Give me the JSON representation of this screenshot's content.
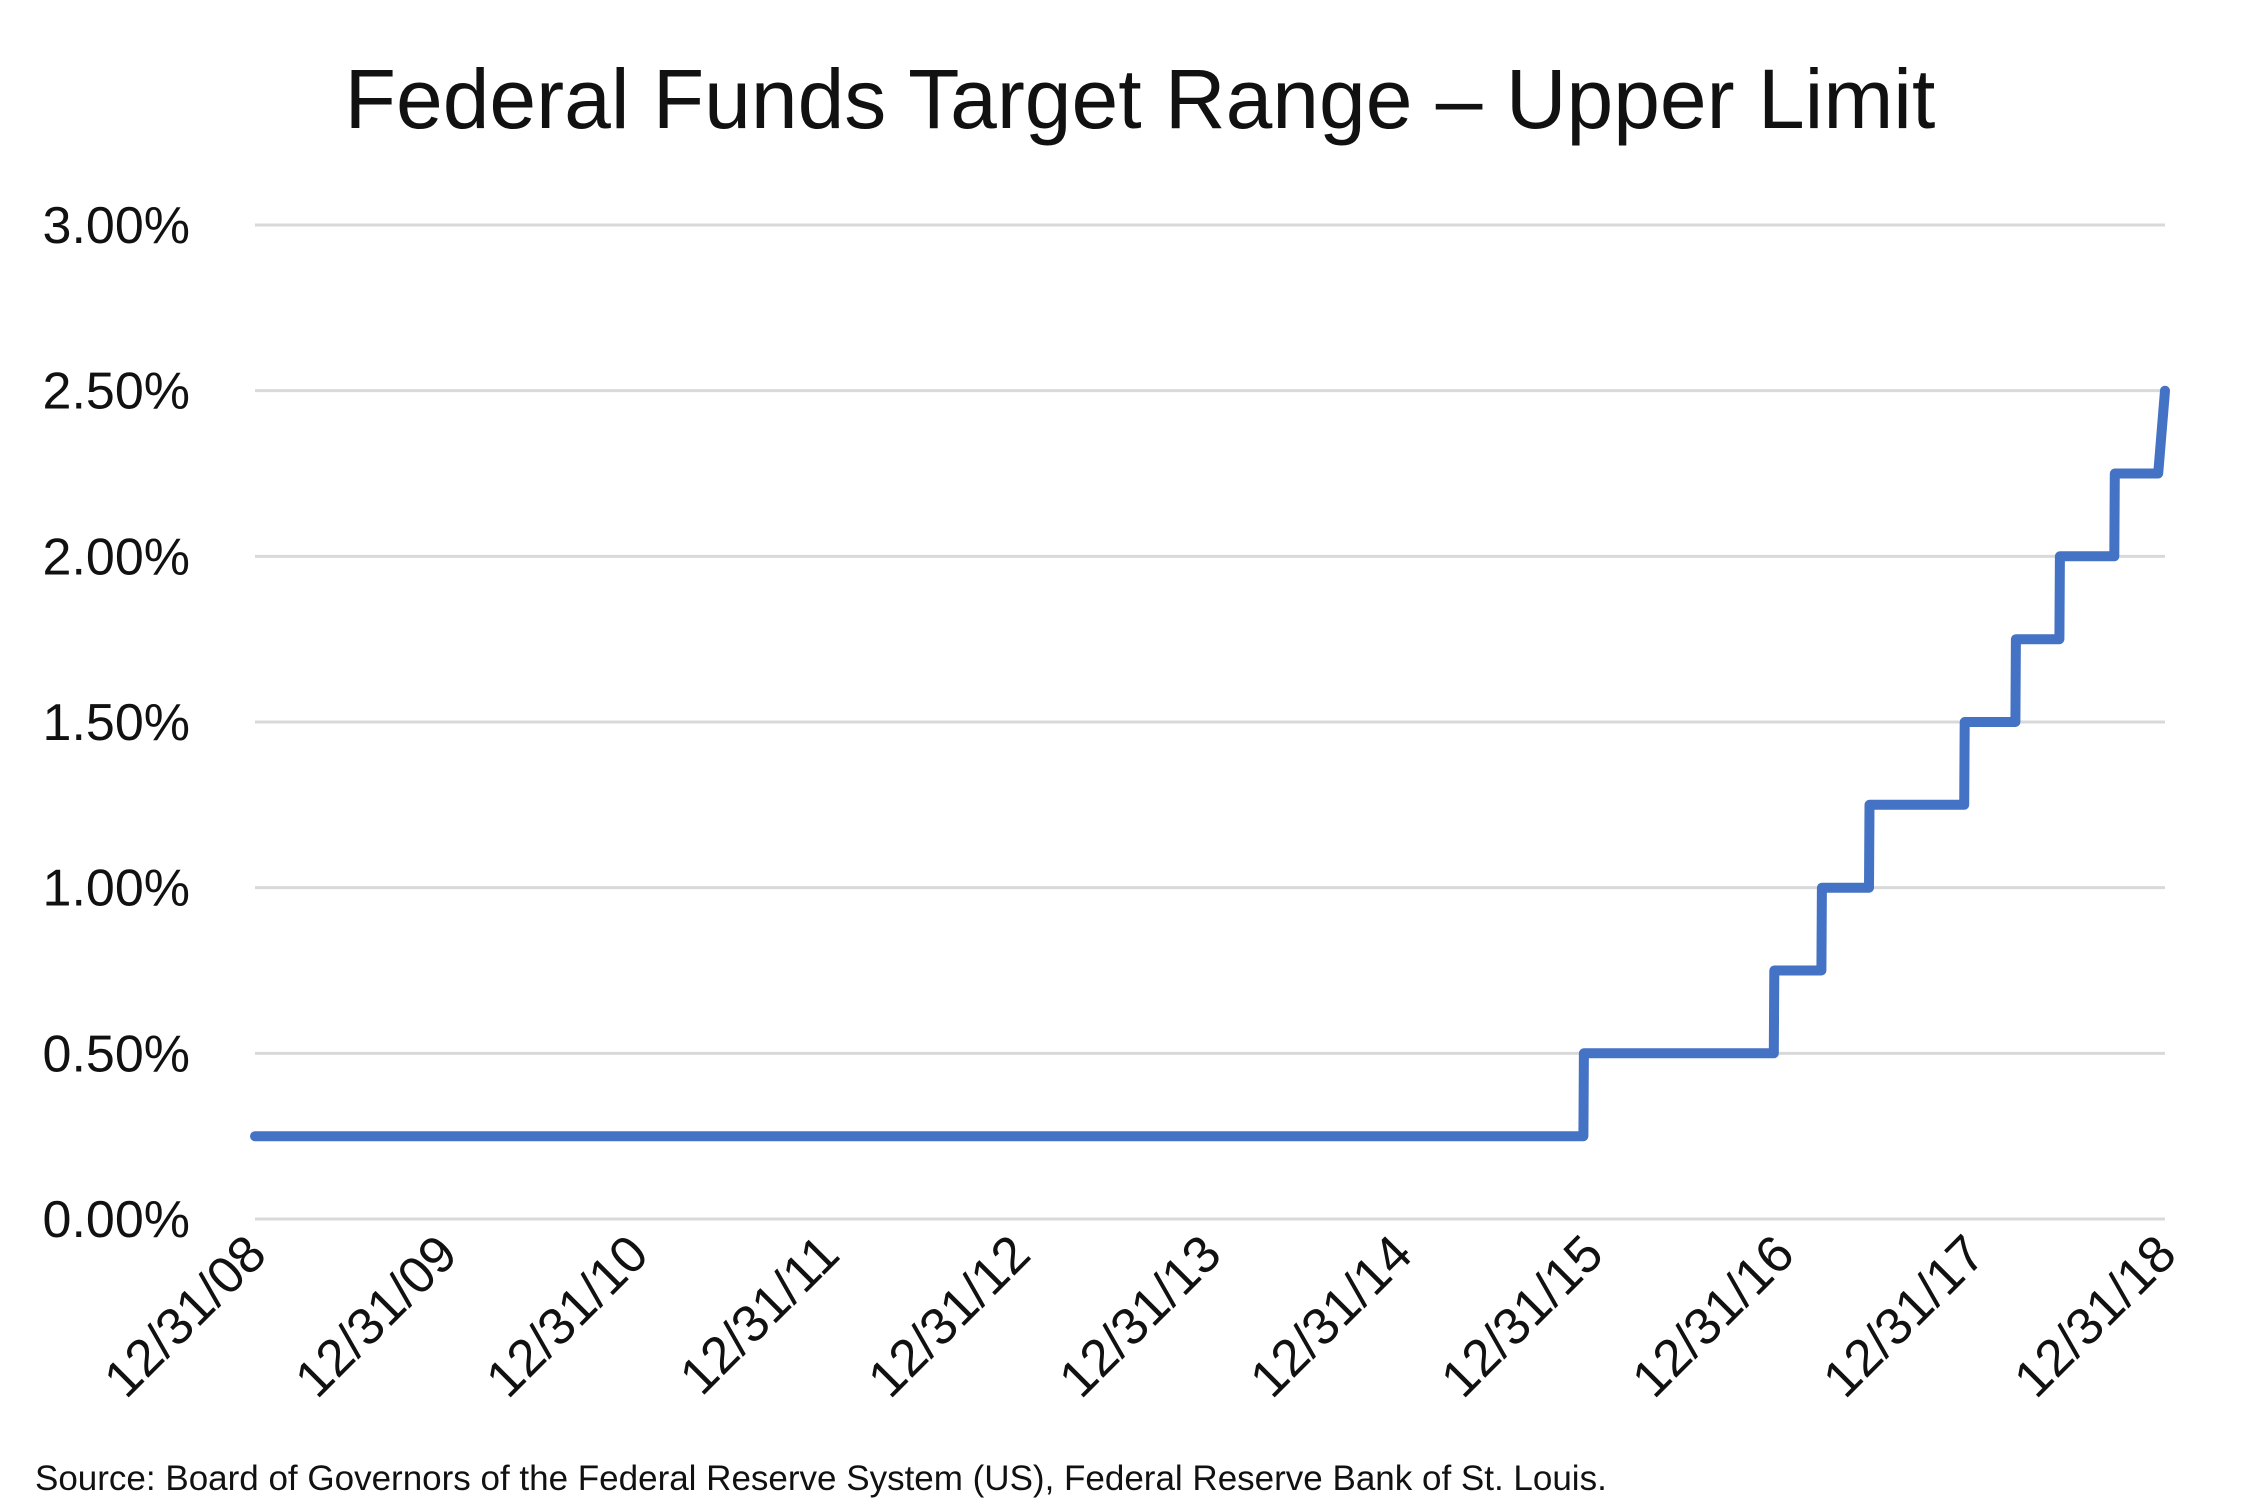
{
  "chart_data": {
    "type": "line",
    "title": "Federal Funds Target Range – Upper Limit",
    "source": "Source: Board of Governors of the Federal Reserve System (US), Federal Reserve Bank of St. Louis.",
    "xlabel": "",
    "ylabel": "",
    "x_ticks": [
      "12/31/08",
      "12/31/09",
      "12/31/10",
      "12/31/11",
      "12/31/12",
      "12/31/13",
      "12/31/14",
      "12/31/15",
      "12/31/16",
      "12/31/17",
      "12/31/18"
    ],
    "y_ticks": [
      "0.00%",
      "0.50%",
      "1.00%",
      "1.50%",
      "2.00%",
      "2.50%",
      "3.00%"
    ],
    "ylim": [
      0,
      3.0
    ],
    "xlim": [
      "2008-12-31",
      "2018-12-31"
    ],
    "grid": "horizontal",
    "legend": "none",
    "color": "#4472C4",
    "series": [
      {
        "points": [
          {
            "date": "2008-12-31",
            "value": 0.25
          },
          {
            "date": "2015-12-15",
            "value": 0.25
          },
          {
            "date": "2015-12-16",
            "value": 0.5
          },
          {
            "date": "2016-12-13",
            "value": 0.5
          },
          {
            "date": "2016-12-14",
            "value": 0.75
          },
          {
            "date": "2017-03-14",
            "value": 0.75
          },
          {
            "date": "2017-03-15",
            "value": 1.0
          },
          {
            "date": "2017-06-13",
            "value": 1.0
          },
          {
            "date": "2017-06-14",
            "value": 1.25
          },
          {
            "date": "2017-12-12",
            "value": 1.25
          },
          {
            "date": "2017-12-13",
            "value": 1.5
          },
          {
            "date": "2018-03-20",
            "value": 1.5
          },
          {
            "date": "2018-03-21",
            "value": 1.75
          },
          {
            "date": "2018-06-12",
            "value": 1.75
          },
          {
            "date": "2018-06-13",
            "value": 2.0
          },
          {
            "date": "2018-09-25",
            "value": 2.0
          },
          {
            "date": "2018-09-26",
            "value": 2.25
          },
          {
            "date": "2018-12-18",
            "value": 2.25
          },
          {
            "date": "2018-12-31",
            "value": 2.5
          }
        ]
      }
    ]
  }
}
